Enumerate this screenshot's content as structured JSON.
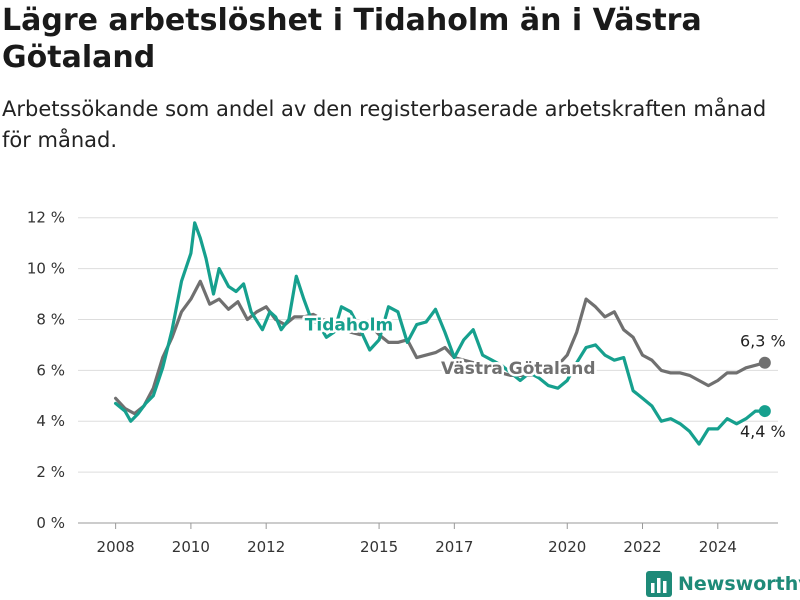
{
  "title": "Lägre arbetslöshet i Tidaholm än i Västra Götaland",
  "subtitle": "Arbetssökande som andel av den registerbaserade arbetskraften månad för månad.",
  "brand": {
    "name": "Newsworthy",
    "color": "#1e8a78"
  },
  "chart_data": {
    "type": "line",
    "ylim": [
      0,
      12.5
    ],
    "xlim": [
      2007.0,
      2025.6
    ],
    "y_ticks": [
      0,
      2,
      4,
      6,
      8,
      10,
      12
    ],
    "y_tick_labels": [
      "0 %",
      "2 %",
      "4 %",
      "6 %",
      "8 %",
      "10 %",
      "12 %"
    ],
    "x_ticks": [
      2008,
      2010,
      2012,
      2015,
      2017,
      2020,
      2022,
      2024
    ],
    "x_tick_labels": [
      "2008",
      "2010",
      "2012",
      "2015",
      "2017",
      "2020",
      "2022",
      "2024"
    ],
    "grid": "horizontal",
    "series": [
      {
        "name": "Västra Götaland",
        "color": "#707070",
        "end_label": "6,3 %",
        "points": [
          [
            2008.0,
            4.9
          ],
          [
            2008.25,
            4.5
          ],
          [
            2008.5,
            4.3
          ],
          [
            2008.75,
            4.6
          ],
          [
            2009.0,
            5.3
          ],
          [
            2009.25,
            6.5
          ],
          [
            2009.5,
            7.3
          ],
          [
            2009.75,
            8.3
          ],
          [
            2010.0,
            8.8
          ],
          [
            2010.25,
            9.5
          ],
          [
            2010.5,
            8.6
          ],
          [
            2010.75,
            8.8
          ],
          [
            2011.0,
            8.4
          ],
          [
            2011.25,
            8.7
          ],
          [
            2011.5,
            8.0
          ],
          [
            2011.75,
            8.3
          ],
          [
            2012.0,
            8.5
          ],
          [
            2012.25,
            8.0
          ],
          [
            2012.5,
            7.8
          ],
          [
            2012.75,
            8.1
          ],
          [
            2013.0,
            8.1
          ],
          [
            2013.25,
            8.2
          ],
          [
            2013.5,
            8.0
          ],
          [
            2013.75,
            7.9
          ],
          [
            2014.0,
            7.8
          ],
          [
            2014.25,
            7.5
          ],
          [
            2014.5,
            7.4
          ],
          [
            2014.75,
            7.8
          ],
          [
            2015.0,
            7.4
          ],
          [
            2015.25,
            7.1
          ],
          [
            2015.5,
            7.1
          ],
          [
            2015.75,
            7.2
          ],
          [
            2016.0,
            6.5
          ],
          [
            2016.25,
            6.6
          ],
          [
            2016.5,
            6.7
          ],
          [
            2016.75,
            6.9
          ],
          [
            2017.0,
            6.5
          ],
          [
            2017.25,
            6.4
          ],
          [
            2017.5,
            6.3
          ],
          [
            2017.75,
            6.2
          ],
          [
            2018.0,
            6.0
          ],
          [
            2018.25,
            5.9
          ],
          [
            2018.5,
            5.8
          ],
          [
            2018.75,
            5.8
          ],
          [
            2019.0,
            5.8
          ],
          [
            2019.25,
            5.9
          ],
          [
            2019.5,
            6.0
          ],
          [
            2019.75,
            6.2
          ],
          [
            2020.0,
            6.6
          ],
          [
            2020.25,
            7.5
          ],
          [
            2020.5,
            8.8
          ],
          [
            2020.75,
            8.5
          ],
          [
            2021.0,
            8.1
          ],
          [
            2021.25,
            8.3
          ],
          [
            2021.5,
            7.6
          ],
          [
            2021.75,
            7.3
          ],
          [
            2022.0,
            6.6
          ],
          [
            2022.25,
            6.4
          ],
          [
            2022.5,
            6.0
          ],
          [
            2022.75,
            5.9
          ],
          [
            2023.0,
            5.9
          ],
          [
            2023.25,
            5.8
          ],
          [
            2023.5,
            5.6
          ],
          [
            2023.75,
            5.4
          ],
          [
            2024.0,
            5.6
          ],
          [
            2024.25,
            5.9
          ],
          [
            2024.5,
            5.9
          ],
          [
            2024.75,
            6.1
          ],
          [
            2025.0,
            6.2
          ],
          [
            2025.25,
            6.3
          ]
        ]
      },
      {
        "name": "Tidaholm",
        "color": "#16a08e",
        "end_label": "4,4 %",
        "points": [
          [
            2008.0,
            4.7
          ],
          [
            2008.25,
            4.4
          ],
          [
            2008.4,
            4.0
          ],
          [
            2008.6,
            4.3
          ],
          [
            2008.8,
            4.7
          ],
          [
            2009.0,
            5.0
          ],
          [
            2009.25,
            6.1
          ],
          [
            2009.5,
            7.6
          ],
          [
            2009.75,
            9.5
          ],
          [
            2010.0,
            10.6
          ],
          [
            2010.1,
            11.8
          ],
          [
            2010.25,
            11.2
          ],
          [
            2010.4,
            10.4
          ],
          [
            2010.6,
            9.0
          ],
          [
            2010.75,
            10.0
          ],
          [
            2011.0,
            9.3
          ],
          [
            2011.2,
            9.1
          ],
          [
            2011.4,
            9.4
          ],
          [
            2011.6,
            8.3
          ],
          [
            2011.9,
            7.6
          ],
          [
            2012.1,
            8.3
          ],
          [
            2012.25,
            8.1
          ],
          [
            2012.4,
            7.6
          ],
          [
            2012.6,
            8.0
          ],
          [
            2012.8,
            9.7
          ],
          [
            2013.0,
            8.8
          ],
          [
            2013.2,
            8.0
          ],
          [
            2013.4,
            7.8
          ],
          [
            2013.6,
            7.3
          ],
          [
            2013.8,
            7.5
          ],
          [
            2014.0,
            8.5
          ],
          [
            2014.25,
            8.3
          ],
          [
            2014.5,
            7.6
          ],
          [
            2014.75,
            6.8
          ],
          [
            2015.0,
            7.2
          ],
          [
            2015.25,
            8.5
          ],
          [
            2015.5,
            8.3
          ],
          [
            2015.75,
            7.1
          ],
          [
            2016.0,
            7.8
          ],
          [
            2016.25,
            7.9
          ],
          [
            2016.5,
            8.4
          ],
          [
            2016.75,
            7.5
          ],
          [
            2017.0,
            6.5
          ],
          [
            2017.25,
            7.2
          ],
          [
            2017.5,
            7.6
          ],
          [
            2017.75,
            6.6
          ],
          [
            2018.0,
            6.4
          ],
          [
            2018.25,
            6.2
          ],
          [
            2018.5,
            5.9
          ],
          [
            2018.75,
            5.6
          ],
          [
            2019.0,
            5.9
          ],
          [
            2019.25,
            5.7
          ],
          [
            2019.5,
            5.4
          ],
          [
            2019.75,
            5.3
          ],
          [
            2020.0,
            5.6
          ],
          [
            2020.25,
            6.3
          ],
          [
            2020.5,
            6.9
          ],
          [
            2020.75,
            7.0
          ],
          [
            2021.0,
            6.6
          ],
          [
            2021.25,
            6.4
          ],
          [
            2021.5,
            6.5
          ],
          [
            2021.75,
            5.2
          ],
          [
            2022.0,
            4.9
          ],
          [
            2022.25,
            4.6
          ],
          [
            2022.5,
            4.0
          ],
          [
            2022.75,
            4.1
          ],
          [
            2023.0,
            3.9
          ],
          [
            2023.25,
            3.6
          ],
          [
            2023.5,
            3.1
          ],
          [
            2023.75,
            3.7
          ],
          [
            2024.0,
            3.7
          ],
          [
            2024.25,
            4.1
          ],
          [
            2024.5,
            3.9
          ],
          [
            2024.75,
            4.1
          ],
          [
            2025.0,
            4.4
          ],
          [
            2025.25,
            4.4
          ]
        ]
      }
    ],
    "series_labels": [
      {
        "series": 1,
        "text": "Tidaholm",
        "at": [
          2014.2,
          7.8
        ]
      },
      {
        "series": 0,
        "text": "Västra Götaland",
        "at": [
          2018.7,
          6.1
        ]
      }
    ]
  }
}
